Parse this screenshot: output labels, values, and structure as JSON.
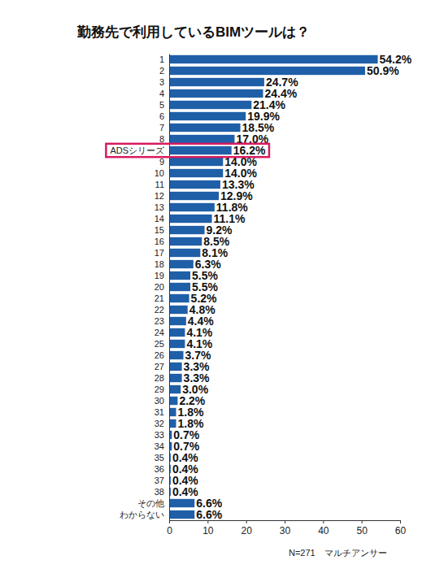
{
  "chart_data": {
    "type": "bar",
    "orientation": "horizontal",
    "title": "勤務先で利用しているBIMツールは？",
    "annotations": [
      "N=271　マルチアンサー"
    ],
    "categories": [
      "1",
      "2",
      "3",
      "4",
      "5",
      "6",
      "7",
      "8",
      "ADSシリーズ",
      "9",
      "10",
      "11",
      "12",
      "13",
      "14",
      "15",
      "16",
      "17",
      "18",
      "19",
      "20",
      "21",
      "22",
      "23",
      "24",
      "25",
      "26",
      "27",
      "28",
      "29",
      "30",
      "31",
      "32",
      "33",
      "34",
      "35",
      "36",
      "37",
      "38",
      "その他",
      "わからない"
    ],
    "values": [
      54.2,
      50.9,
      24.7,
      24.4,
      21.4,
      19.9,
      18.5,
      17.0,
      16.2,
      14.0,
      14.0,
      13.3,
      12.9,
      11.8,
      11.1,
      9.2,
      8.5,
      8.1,
      6.3,
      5.5,
      5.5,
      5.2,
      4.8,
      4.4,
      4.1,
      4.1,
      3.7,
      3.3,
      3.3,
      3.0,
      2.2,
      1.8,
      1.8,
      0.7,
      0.7,
      0.4,
      0.4,
      0.4,
      0.4,
      6.6,
      6.6
    ],
    "value_labels": [
      "54.2%",
      "50.9%",
      "24.7%",
      "24.4%",
      "21.4%",
      "19.9%",
      "18.5%",
      "17.0%",
      "16.2%",
      "14.0%",
      "14.0%",
      "13.3%",
      "12.9%",
      "11.8%",
      "11.1%",
      "9.2%",
      "8.5%",
      "8.1%",
      "6.3%",
      "5.5%",
      "5.5%",
      "5.2%",
      "4.8%",
      "4.4%",
      "4.1%",
      "4.1%",
      "3.7%",
      "3.3%",
      "3.3%",
      "3.0%",
      "2.2%",
      "1.8%",
      "1.8%",
      "0.7%",
      "0.7%",
      "0.4%",
      "0.4%",
      "0.4%",
      "0.4%",
      "6.6%",
      "6.6%"
    ],
    "color": "#1f5fa8",
    "xlim": [
      0,
      60
    ],
    "xticks": [
      0,
      10,
      20,
      30,
      40,
      50,
      60
    ],
    "grid": false,
    "data_labels": true
  }
}
